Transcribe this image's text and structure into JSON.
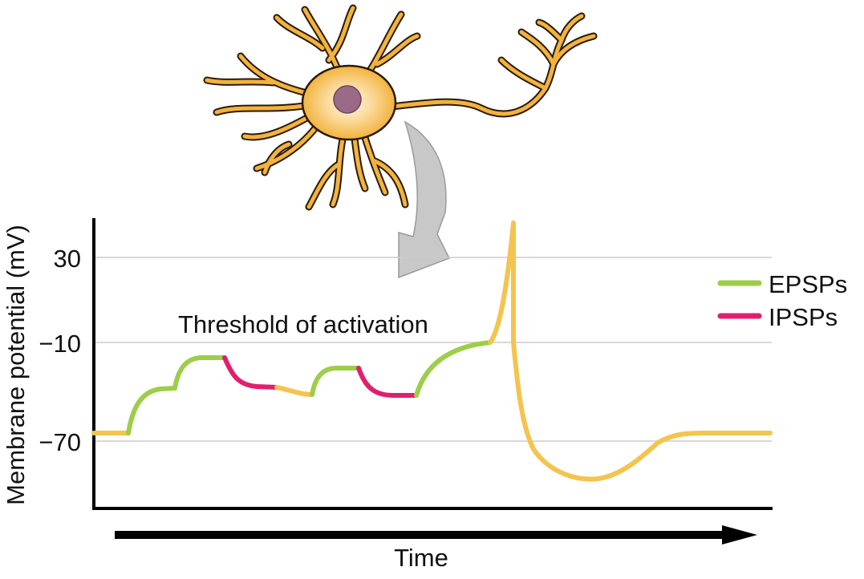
{
  "axes": {
    "y_title": "Membrane potential (mV)",
    "x_title": "Time"
  },
  "y_ticks": [
    "30",
    "−10",
    "−70"
  ],
  "annotation": "Threshold of activation",
  "legend": [
    {
      "label": "EPSPs",
      "color": "#9dcd4a"
    },
    {
      "label": "IPSPs",
      "color": "#e0206e"
    }
  ],
  "colors": {
    "baseline_trace": "#f4c44e",
    "neuron_fill": "#f2b33d",
    "neuron_stroke": "#2a1a0a",
    "nucleus": "#9b6a86",
    "arrow": "#c8c8c8",
    "gridline": "#cccccc"
  },
  "icons": {
    "neuron": "neuron-illustration",
    "arrow": "curved-down-arrow"
  }
}
